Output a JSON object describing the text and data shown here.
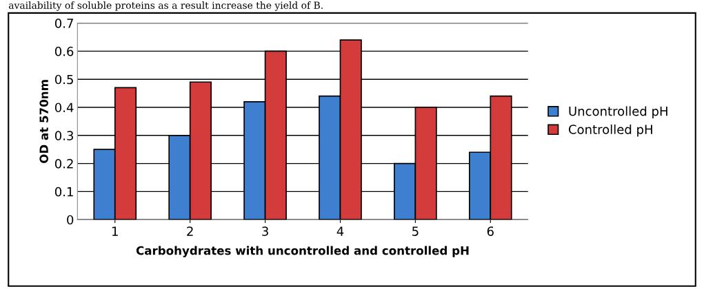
{
  "chart_data": {
    "type": "bar",
    "categories": [
      "1",
      "2",
      "3",
      "4",
      "5",
      "6"
    ],
    "series": [
      {
        "name": "Uncontrolled pH",
        "color": "#3f7fd0",
        "values": [
          0.25,
          0.3,
          0.42,
          0.44,
          0.2,
          0.24
        ]
      },
      {
        "name": "Controlled pH",
        "color": "#d43c3c",
        "values": [
          0.47,
          0.49,
          0.6,
          0.64,
          0.4,
          0.44
        ]
      }
    ],
    "xlabel": "Carbohydrates with uncontrolled and controlled pH",
    "ylabel": "OD at 570nm",
    "ylim": [
      0,
      0.7
    ],
    "yticks": [
      {
        "value": 0,
        "label": "0"
      },
      0.1,
      0.2,
      0.3,
      0.4,
      0.5,
      0.6,
      0.7
    ],
    "grid": "y",
    "legend": "right",
    "annotations": [
      "availability of soluble proteins as a result increase the yield of B."
    ]
  }
}
